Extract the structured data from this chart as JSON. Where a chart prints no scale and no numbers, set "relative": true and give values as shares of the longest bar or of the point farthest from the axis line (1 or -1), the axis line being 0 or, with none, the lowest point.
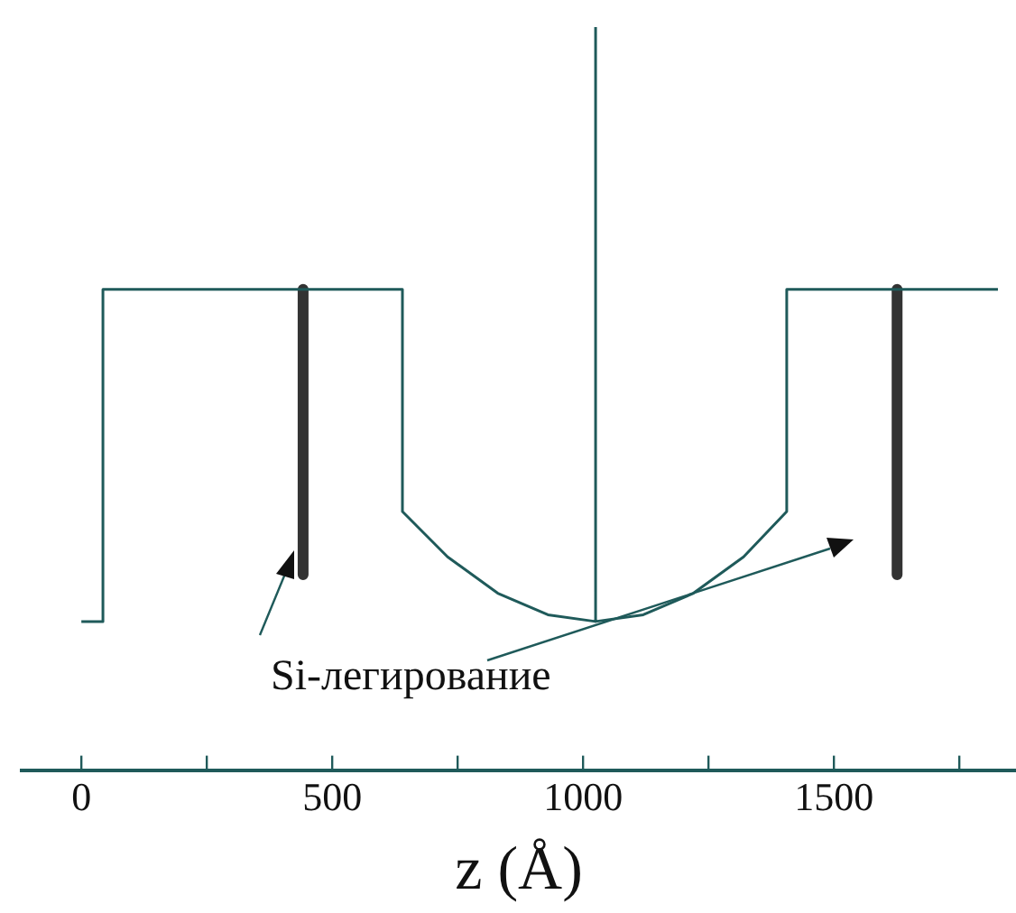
{
  "chart_data": {
    "type": "line",
    "relative": true,
    "xlabel": "z (Å)",
    "annotations": [
      "Si-легирование"
    ],
    "xlim": [
      -119,
      1863
    ],
    "xticks": [
      0,
      {
        "value": 250,
        "label": null
      },
      500,
      {
        "value": 750,
        "label": null
      },
      1000,
      {
        "value": 1250,
        "label": null
      },
      1500,
      {
        "value": 1750,
        "label": null
      }
    ],
    "grid": false,
    "legend": false,
    "marker": "none",
    "line_style": "solid",
    "series": [
      {
        "color": "#1f5a5a",
        "x": [
          0,
          43,
          43,
          640,
          640,
          730,
          830,
          930,
          1025,
          1025,
          1025,
          1120,
          1220,
          1320,
          1406,
          1406,
          1827
        ],
        "values": [
          0.2,
          0.2,
          0.647,
          0.647,
          0.348,
          0.287,
          0.238,
          0.209,
          0.2,
          1,
          0.2,
          0.209,
          0.238,
          0.287,
          0.348,
          0.647,
          0.647
        ]
      },
      {
        "color": "#333333",
        "x": [
          442,
          442,
          1000,
          1626,
          1626
        ],
        "values": [
          0.647,
          0.263,
          null,
          0.647,
          0.263
        ]
      }
    ]
  }
}
